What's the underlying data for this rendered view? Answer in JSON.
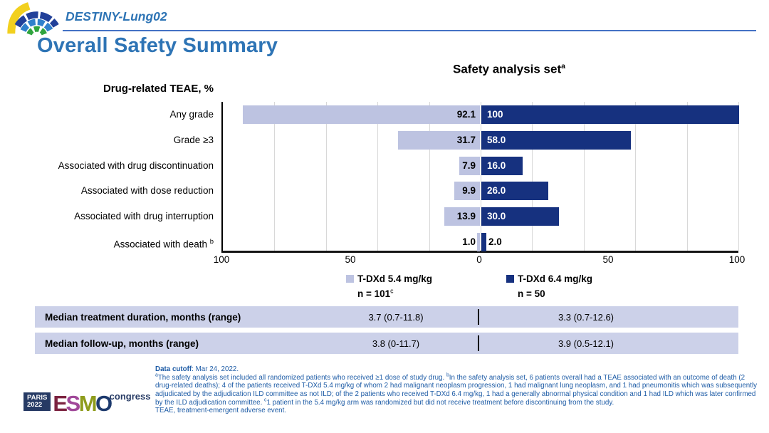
{
  "header": {
    "study_name": "DESTINY-Lung02",
    "page_title": "Overall Safety Summary"
  },
  "chart_data": {
    "type": "bar",
    "orientation": "horizontal-tornado",
    "title": "Safety analysis set",
    "title_sup": "a",
    "axis_label": "Drug-related TEAE, %",
    "categories": [
      {
        "label": "Any grade",
        "sup": ""
      },
      {
        "label": "Grade ≥3",
        "sup": ""
      },
      {
        "label": "Associated with drug discontinuation",
        "sup": ""
      },
      {
        "label": "Associated with dose reduction",
        "sup": ""
      },
      {
        "label": "Associated with drug interruption",
        "sup": ""
      },
      {
        "label": "Associated with death",
        "sup": "b"
      }
    ],
    "xlim": [
      -100,
      100
    ],
    "x_ticks": [
      "100",
      "50",
      "0",
      "50",
      "100"
    ],
    "gridline_interval": 20,
    "grid": true,
    "legend_position": "bottom",
    "series": [
      {
        "name": "T-DXd 5.4 mg/kg",
        "n_label": "n = 101",
        "n_sup": "c",
        "color": "#bdc3e1",
        "values": [
          92.1,
          31.7,
          7.9,
          9.9,
          13.9,
          1.0
        ],
        "value_labels": [
          "92.1",
          "31.7",
          "7.9",
          "9.9",
          "13.9",
          "1.0"
        ]
      },
      {
        "name": "T-DXd 6.4 mg/kg",
        "n_label": "n = 50",
        "n_sup": "",
        "color": "#16317f",
        "values": [
          100,
          58.0,
          16.0,
          26.0,
          30.0,
          2.0
        ],
        "value_labels": [
          "100",
          "58.0",
          "16.0",
          "26.0",
          "30.0",
          "2.0"
        ]
      }
    ]
  },
  "table": {
    "rows": [
      {
        "label": "Median treatment duration, months (range)",
        "value1": "3.7 (0.7-11.8)",
        "value2": "3.3 (0.7-12.6)"
      },
      {
        "label": "Median follow-up, months (range)",
        "value1": "3.8 (0-11.7)",
        "value2": "3.9 (0.5-12.1)"
      }
    ]
  },
  "footnotes": {
    "cutoff_label": "Data cutoff",
    "cutoff_value": ": Mar 24, 2022.",
    "note_a_sup": "a",
    "note_a": "The safety analysis set included all randomized patients who received ≥1 dose of study drug. ",
    "note_b_sup": "b",
    "note_b": "In the safety analysis set, 6 patients overall had a TEAE associated with an outcome of death (2 drug-related deaths); 4 of the patients received T-DXd 5.4 mg/kg of whom 2 had malignant neoplasm progression, 1 had malignant lung neoplasm, and 1 had pneumonitis which was subsequently adjudicated by the adjudication ILD committee as not ILD; of the 2 patients who received T-DXd 6.4 mg/kg, 1 had a generally abnormal physical condition and 1 had ILD which was later confirmed by the ILD adjudication committee. ",
    "note_c_sup": "c",
    "note_c": "1 patient in the 5.4 mg/kg arm was randomized but did not receive treatment before discontinuing from the study.",
    "abbrev": "TEAE, treatment-emergent adverse event."
  },
  "footer_logo": {
    "box_line1": "PARIS",
    "box_line2": "2022",
    "letters": [
      {
        "ch": "E",
        "color": "#7c2340"
      },
      {
        "ch": "S",
        "color": "#a04899"
      },
      {
        "ch": "M",
        "color": "#8e9c1c"
      },
      {
        "ch": "O",
        "color": "#1d3a6d"
      }
    ],
    "congress": "congress"
  },
  "colors": {
    "accent_blue": "#2e74b5",
    "rule_blue": "#4472c4",
    "bar_light": "#bdc3e1",
    "bar_dark": "#16317f",
    "table_row_bg": "#ccd1e9",
    "footnote_blue": "#1e5ca6",
    "gridline": "#d8d8d8"
  }
}
